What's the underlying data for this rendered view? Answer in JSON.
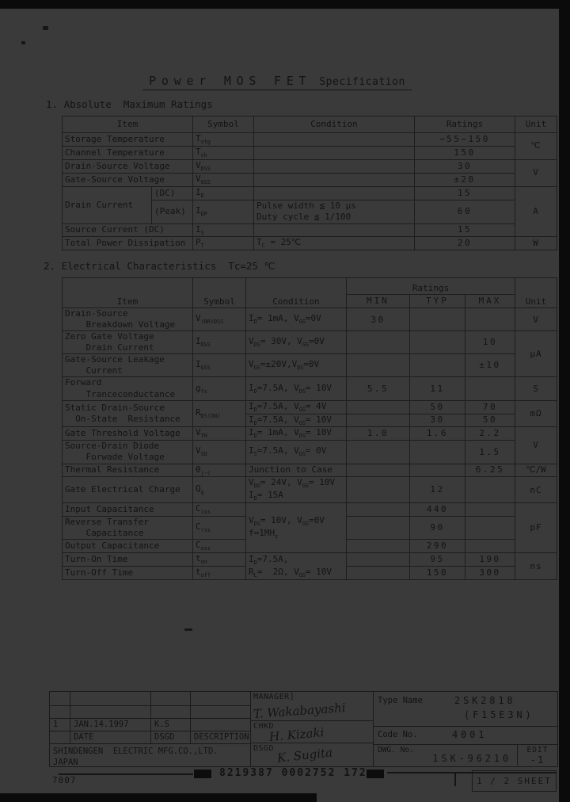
{
  "page": {
    "title_main": "Power MOS FET",
    "title_sub": "Specification",
    "section1_heading": "1. Absolute  Maximum Ratings",
    "section2_heading": "2. Electrical Characteristics  Tc=25 ℃",
    "stamp_number": "7007",
    "barcode_text": "8219387 0002752 172",
    "sheet_label": "1 / 2 SHEET"
  },
  "abs_max": {
    "headers": {
      "item": "Item",
      "symbol": "Symbol",
      "condition": "Condition",
      "ratings": "Ratings",
      "unit": "Unit"
    },
    "rows": [
      {
        "item": "Storage Temperature",
        "symbol": "T~stg~",
        "condition": "",
        "rating": "−55~150",
        "unit": "℃"
      },
      {
        "item": "Channel Temperature",
        "symbol": "T~ch~",
        "condition": "",
        "rating": "150"
      },
      {
        "item": "Drain-Source Voltage",
        "symbol": "V~DSS~",
        "condition": "",
        "rating": "30",
        "unit": "V"
      },
      {
        "item": "Gate-Source Voltage",
        "symbol": "V~GSS~",
        "condition": "",
        "rating": "±20"
      },
      {
        "item": "Drain Current",
        "sub": "(DC)",
        "symbol": "I~D~",
        "condition": "",
        "rating": "15",
        "unit": "A"
      },
      {
        "sub": "(Peak)",
        "symbol": "I~DP~",
        "condition": "Pulse width ≦ 10 μs\nDuty cycle ≦ 1/100",
        "rating": "60"
      },
      {
        "item": "Source  Current (DC)",
        "symbol": "I~S~",
        "condition": "",
        "rating": "15"
      },
      {
        "item": "Total Power Dissipation",
        "symbol": "P~T~",
        "condition": "T~C~ = 25℃",
        "rating": "20",
        "unit": "W"
      }
    ]
  },
  "elec": {
    "headers": {
      "item": "Item",
      "symbol": "Symbol",
      "condition": "Condition",
      "ratings": "Ratings",
      "min": "MIN",
      "typ": "TYP",
      "max": "MAX",
      "unit": "Unit"
    },
    "rows": [
      {
        "item": "Drain-Source\n    Breakdown Voltage",
        "symbol": "V~(BR)DSS~",
        "condition": "I~D~= 1mA, V~GS~=0V",
        "min": "30",
        "typ": "",
        "max": "",
        "unit": "V"
      },
      {
        "item": "Zero Gate Voltage\n    Drain Current",
        "symbol": "I~DSS~",
        "condition": "V~DS~= 30V, V~GS~=0V",
        "min": "",
        "typ": "",
        "max": "10",
        "unit": "μA"
      },
      {
        "item": "Gate-Source Leakage\n    Current",
        "symbol": "I~GSS~",
        "condition": "V~GS~=±20V,V~DS~=0V",
        "min": "",
        "typ": "",
        "max": "±10"
      },
      {
        "item": "Forward\n    Tranceconductance",
        "symbol": "g~fs~",
        "condition": "I~D~=7.5A, V~DS~= 10V",
        "min": "5.5",
        "typ": "11",
        "max": "",
        "unit": "S"
      },
      {
        "item": "Static Drain-Source\n  On-State  Resistance",
        "symbol": "R~DS(ON)~",
        "condition": "I~D~=7.5A, V~GS~=  4V",
        "min": "",
        "typ": "50",
        "max": "70",
        "unit": "mΩ"
      },
      {
        "condition": "I~D~=7.5A, V~GS~= 10V",
        "min": "",
        "typ": "30",
        "max": "50"
      },
      {
        "item": "Gate Threshold Voltage",
        "symbol": "V~TH~",
        "condition": "I~D~= 1mA, V~DS~= 10V",
        "min": "1.0",
        "typ": "1.6",
        "max": "2.2",
        "unit": "V"
      },
      {
        "item": "Source-Drain Diode\n    Forwade Voltage",
        "symbol": "V~SD~",
        "condition": "I~S~=7.5A, V~GS~= 0V",
        "min": "",
        "typ": "",
        "max": "1.5"
      },
      {
        "item": "Thermal Resistance",
        "symbol": "θ~j-c~",
        "condition": "Junction to Case",
        "min": "",
        "typ": "",
        "max": "6.25",
        "unit": "℃/W"
      },
      {
        "item": "Gate Electrical Charge",
        "symbol": "Q~g~",
        "condition": "V~DD~= 24V, V~GS~= 10V\nI~D~= 15A",
        "min": "",
        "typ": "12",
        "max": "",
        "unit": "nC"
      },
      {
        "item": "Input Capacitance",
        "symbol": "C~iss~",
        "condition": "V~DS~= 10V, V~GS~=0V\nf=1MH~z~",
        "min": "",
        "typ": "440",
        "max": "",
        "unit": "pF"
      },
      {
        "item": "Reverse Transfer\n    Capacitance",
        "symbol": "C~rss~",
        "min": "",
        "typ": "90",
        "max": ""
      },
      {
        "item": "Output Capacitance",
        "symbol": "C~oss~",
        "min": "",
        "typ": "290",
        "max": ""
      },
      {
        "item": "Turn-On Time",
        "symbol": "t~on~",
        "condition": "I~D~=7.5A,\nR~L~=  2Ω, V~GS~= 10V",
        "min": "",
        "typ": "95",
        "max": "190",
        "unit": "ns"
      },
      {
        "item": "Turn-Off Time",
        "symbol": "t~off~",
        "min": "",
        "typ": "150",
        "max": "300"
      }
    ]
  },
  "title_block": {
    "revision": {
      "rev": "1",
      "date": "JAN.14.1997",
      "dsgd": "K.S",
      "date_label": "DATE",
      "dsgd_label": "DSGD",
      "description_label": "DESCRIPTION"
    },
    "company": {
      "line1": "SHINDENGEN  ELECTRIC MFG.CO.,LTD.",
      "line2": "JAPAN"
    },
    "approvals": {
      "manager_label": "MANAGER]",
      "manager_signature": "T. Wakabayashi",
      "chkd_label": "CHKD",
      "chkd_signature": "H. Kizaki",
      "dsgd_label": "DSGD",
      "dsgd_signature": "K. Sugita"
    },
    "info": {
      "type_name_label": "Type Name",
      "type_name_line1": "2SK2818",
      "type_name_line2": "(F15E3N)",
      "code_label": "Code No.",
      "code_value": "4001",
      "dwg_label": "DWG. No.",
      "dwg_value": "1SK-96210",
      "edit_label": "EDIT",
      "edit_value": "-1"
    }
  }
}
